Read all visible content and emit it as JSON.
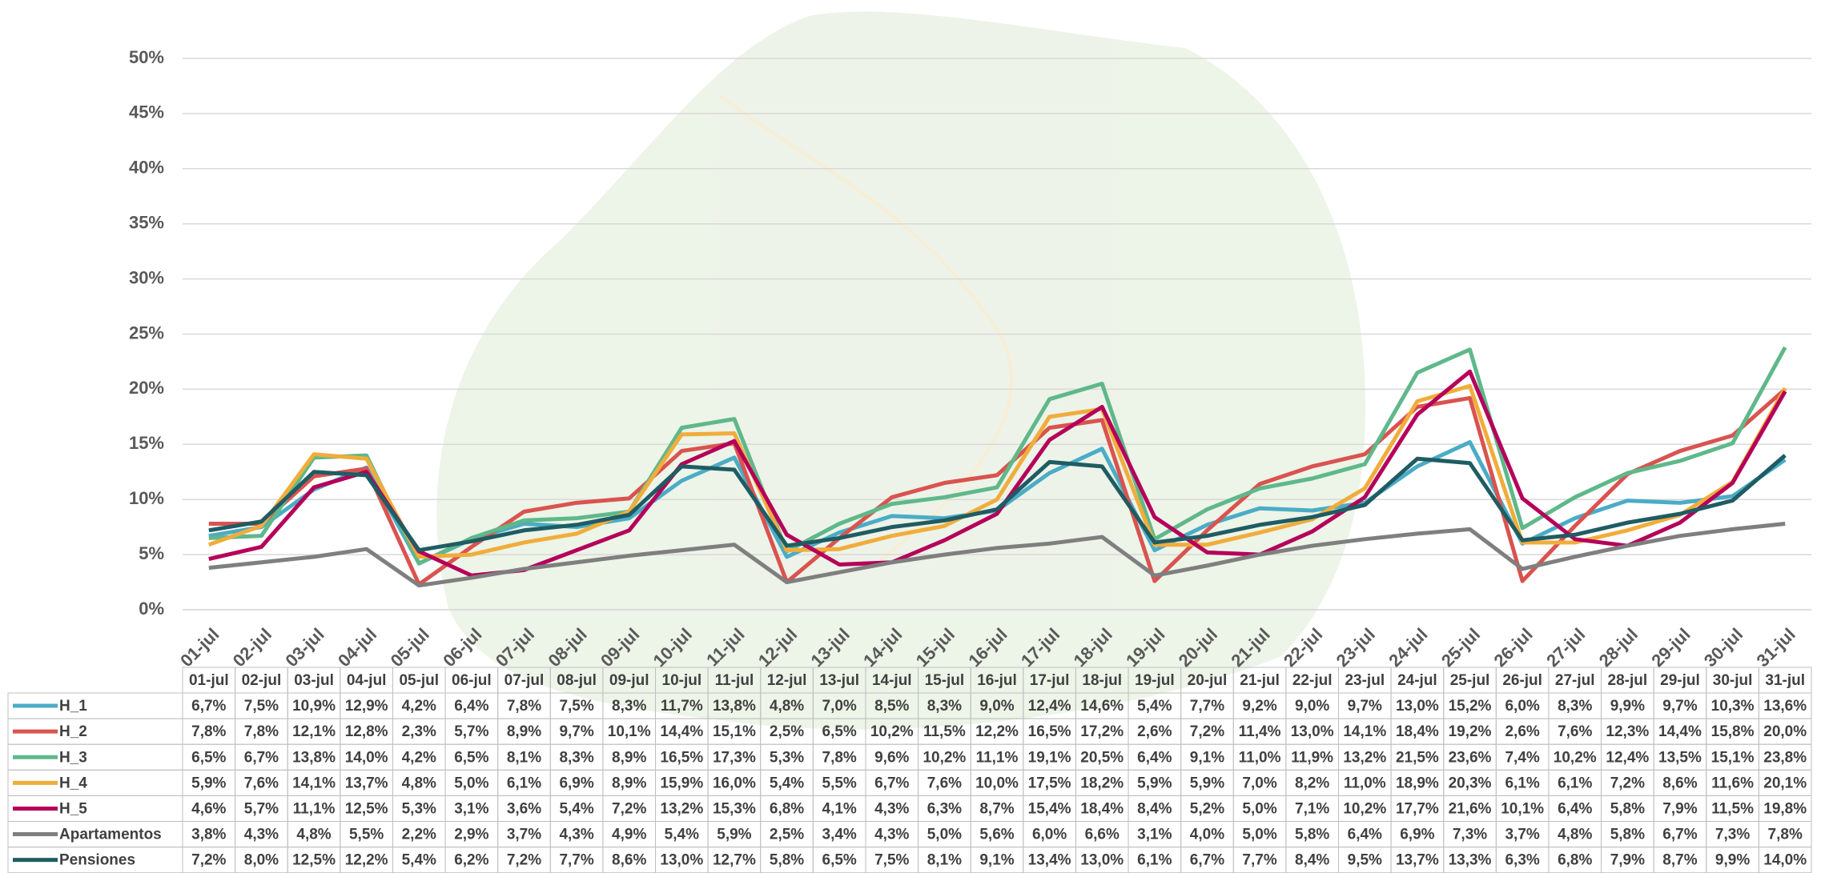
{
  "chart_data": {
    "type": "line",
    "categories": [
      "01-jul",
      "02-jul",
      "03-jul",
      "04-jul",
      "05-jul",
      "06-jul",
      "07-jul",
      "08-jul",
      "09-jul",
      "10-jul",
      "11-jul",
      "12-jul",
      "13-jul",
      "14-jul",
      "15-jul",
      "16-jul",
      "17-jul",
      "18-jul",
      "19-jul",
      "20-jul",
      "21-jul",
      "22-jul",
      "23-jul",
      "24-jul",
      "25-jul",
      "26-jul",
      "27-jul",
      "28-jul",
      "29-jul",
      "30-jul",
      "31-jul"
    ],
    "ylim": [
      0,
      50
    ],
    "yticks": [
      {
        "value": 0,
        "label": "0%"
      },
      {
        "value": 5,
        "label": "5%"
      },
      {
        "value": 10,
        "label": "10%"
      },
      {
        "value": 15,
        "label": "15%"
      },
      {
        "value": 20,
        "label": "20%"
      },
      {
        "value": 25,
        "label": "25%"
      },
      {
        "value": 30,
        "label": "30%"
      },
      {
        "value": 35,
        "label": "35%"
      },
      {
        "value": 40,
        "label": "40%"
      },
      {
        "value": 45,
        "label": "45%"
      },
      {
        "value": 50,
        "label": "50%"
      }
    ],
    "grid": true,
    "series": [
      {
        "name": "H_1",
        "color": "#4bacc6",
        "values": [
          6.7,
          7.5,
          10.9,
          12.9,
          4.2,
          6.4,
          7.8,
          7.5,
          8.3,
          11.7,
          13.8,
          4.8,
          7.0,
          8.5,
          8.3,
          9.0,
          12.4,
          14.6,
          5.4,
          7.7,
          9.2,
          9.0,
          9.7,
          13.0,
          15.2,
          6.0,
          8.3,
          9.9,
          9.7,
          10.3,
          13.6
        ],
        "value_labels": [
          "6,7%",
          "7,5%",
          "10,9%",
          "12,9%",
          "4,2%",
          "6,4%",
          "7,8%",
          "7,5%",
          "8,3%",
          "11,7%",
          "13,8%",
          "4,8%",
          "7,0%",
          "8,5%",
          "8,3%",
          "9,0%",
          "12,4%",
          "14,6%",
          "5,4%",
          "7,7%",
          "9,2%",
          "9,0%",
          "9,7%",
          "13,0%",
          "15,2%",
          "6,0%",
          "8,3%",
          "9,9%",
          "9,7%",
          "10,3%",
          "13,6%"
        ]
      },
      {
        "name": "H_2",
        "color": "#d9534f",
        "values": [
          7.8,
          7.8,
          12.1,
          12.8,
          2.3,
          5.7,
          8.9,
          9.7,
          10.1,
          14.4,
          15.1,
          2.5,
          6.5,
          10.2,
          11.5,
          12.2,
          16.5,
          17.2,
          2.6,
          7.2,
          11.4,
          13.0,
          14.1,
          18.4,
          19.2,
          2.6,
          7.6,
          12.3,
          14.4,
          15.8,
          20.0
        ],
        "value_labels": [
          "7,8%",
          "7,8%",
          "12,1%",
          "12,8%",
          "2,3%",
          "5,7%",
          "8,9%",
          "9,7%",
          "10,1%",
          "14,4%",
          "15,1%",
          "2,5%",
          "6,5%",
          "10,2%",
          "11,5%",
          "12,2%",
          "16,5%",
          "17,2%",
          "2,6%",
          "7,2%",
          "11,4%",
          "13,0%",
          "14,1%",
          "18,4%",
          "19,2%",
          "2,6%",
          "7,6%",
          "12,3%",
          "14,4%",
          "15,8%",
          "20,0%"
        ]
      },
      {
        "name": "H_3",
        "color": "#5fb88a",
        "values": [
          6.5,
          6.7,
          13.8,
          14.0,
          4.2,
          6.5,
          8.1,
          8.3,
          8.9,
          16.5,
          17.3,
          5.3,
          7.8,
          9.6,
          10.2,
          11.1,
          19.1,
          20.5,
          6.4,
          9.1,
          11.0,
          11.9,
          13.2,
          21.5,
          23.6,
          7.4,
          10.2,
          12.4,
          13.5,
          15.1,
          23.8
        ],
        "value_labels": [
          "6,5%",
          "6,7%",
          "13,8%",
          "14,0%",
          "4,2%",
          "6,5%",
          "8,1%",
          "8,3%",
          "8,9%",
          "16,5%",
          "17,3%",
          "5,3%",
          "7,8%",
          "9,6%",
          "10,2%",
          "11,1%",
          "19,1%",
          "20,5%",
          "6,4%",
          "9,1%",
          "11,0%",
          "11,9%",
          "13,2%",
          "21,5%",
          "23,6%",
          "7,4%",
          "10,2%",
          "12,4%",
          "13,5%",
          "15,1%",
          "23,8%"
        ]
      },
      {
        "name": "H_4",
        "color": "#f0ad3c",
        "values": [
          5.9,
          7.6,
          14.1,
          13.7,
          4.8,
          5.0,
          6.1,
          6.9,
          8.9,
          15.9,
          16.0,
          5.4,
          5.5,
          6.7,
          7.6,
          10.0,
          17.5,
          18.2,
          5.9,
          5.9,
          7.0,
          8.2,
          11.0,
          18.9,
          20.3,
          6.1,
          6.1,
          7.2,
          8.6,
          11.6,
          20.1
        ],
        "value_labels": [
          "5,9%",
          "7,6%",
          "14,1%",
          "13,7%",
          "4,8%",
          "5,0%",
          "6,1%",
          "6,9%",
          "8,9%",
          "15,9%",
          "16,0%",
          "5,4%",
          "5,5%",
          "6,7%",
          "7,6%",
          "10,0%",
          "17,5%",
          "18,2%",
          "5,9%",
          "5,9%",
          "7,0%",
          "8,2%",
          "11,0%",
          "18,9%",
          "20,3%",
          "6,1%",
          "6,1%",
          "7,2%",
          "8,6%",
          "11,6%",
          "20,1%"
        ]
      },
      {
        "name": "H_5",
        "color": "#b5005a",
        "values": [
          4.6,
          5.7,
          11.1,
          12.5,
          5.3,
          3.1,
          3.6,
          5.4,
          7.2,
          13.2,
          15.3,
          6.8,
          4.1,
          4.3,
          6.3,
          8.7,
          15.4,
          18.4,
          8.4,
          5.2,
          5.0,
          7.1,
          10.2,
          17.7,
          21.6,
          10.1,
          6.4,
          5.8,
          7.9,
          11.5,
          19.8
        ],
        "value_labels": [
          "4,6%",
          "5,7%",
          "11,1%",
          "12,5%",
          "5,3%",
          "3,1%",
          "3,6%",
          "5,4%",
          "7,2%",
          "13,2%",
          "15,3%",
          "6,8%",
          "4,1%",
          "4,3%",
          "6,3%",
          "8,7%",
          "15,4%",
          "18,4%",
          "8,4%",
          "5,2%",
          "5,0%",
          "7,1%",
          "10,2%",
          "17,7%",
          "21,6%",
          "10,1%",
          "6,4%",
          "5,8%",
          "7,9%",
          "11,5%",
          "19,8%"
        ]
      },
      {
        "name": "Apartamentos",
        "color": "#7f7f7f",
        "values": [
          3.8,
          4.3,
          4.8,
          5.5,
          2.2,
          2.9,
          3.7,
          4.3,
          4.9,
          5.4,
          5.9,
          2.5,
          3.4,
          4.3,
          5.0,
          5.6,
          6.0,
          6.6,
          3.1,
          4.0,
          5.0,
          5.8,
          6.4,
          6.9,
          7.3,
          3.7,
          4.8,
          5.8,
          6.7,
          7.3,
          7.8
        ],
        "value_labels": [
          "3,8%",
          "4,3%",
          "4,8%",
          "5,5%",
          "2,2%",
          "2,9%",
          "3,7%",
          "4,3%",
          "4,9%",
          "5,4%",
          "5,9%",
          "2,5%",
          "3,4%",
          "4,3%",
          "5,0%",
          "5,6%",
          "6,0%",
          "6,6%",
          "3,1%",
          "4,0%",
          "5,0%",
          "5,8%",
          "6,4%",
          "6,9%",
          "7,3%",
          "3,7%",
          "4,8%",
          "5,8%",
          "6,7%",
          "7,3%",
          "7,8%"
        ]
      },
      {
        "name": "Pensiones",
        "color": "#1f5c63",
        "values": [
          7.2,
          8.0,
          12.5,
          12.2,
          5.4,
          6.2,
          7.2,
          7.7,
          8.6,
          13.0,
          12.7,
          5.8,
          6.5,
          7.5,
          8.1,
          9.1,
          13.4,
          13.0,
          6.1,
          6.7,
          7.7,
          8.4,
          9.5,
          13.7,
          13.3,
          6.3,
          6.8,
          7.9,
          8.7,
          9.9,
          14.0
        ],
        "value_labels": [
          "7,2%",
          "8,0%",
          "12,5%",
          "12,2%",
          "5,4%",
          "6,2%",
          "7,2%",
          "7,7%",
          "8,6%",
          "13,0%",
          "12,7%",
          "5,8%",
          "6,5%",
          "7,5%",
          "8,1%",
          "9,1%",
          "13,4%",
          "13,0%",
          "6,1%",
          "6,7%",
          "7,7%",
          "8,4%",
          "9,5%",
          "13,7%",
          "13,3%",
          "6,3%",
          "6,8%",
          "7,9%",
          "8,7%",
          "9,9%",
          "14,0%"
        ]
      }
    ]
  }
}
